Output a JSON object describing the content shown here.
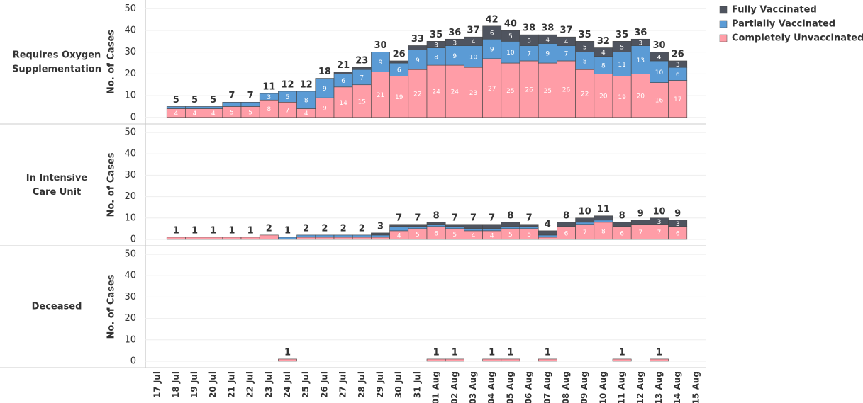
{
  "chart_data": [
    {
      "type": "bar",
      "stacked": true,
      "title": "Requires Oxygen Supplementation",
      "ylabel": "No. of Cases",
      "categories": [
        "17 Jul",
        "18 Jul",
        "19 Jul",
        "20 Jul",
        "21 Jul",
        "22 Jul",
        "23 Jul",
        "24 Jul",
        "25 Jul",
        "26 Jul",
        "27 Jul",
        "28 Jul",
        "29 Jul",
        "30 Jul",
        "31 Jul",
        "01 Aug",
        "02 Aug",
        "03 Aug",
        "04 Aug",
        "05 Aug",
        "06 Aug",
        "07 Aug",
        "08 Aug",
        "09 Aug",
        "10 Aug",
        "11 Aug",
        "12 Aug",
        "13 Aug",
        "14 Aug",
        "15 Aug"
      ],
      "series": [
        {
          "name": "Completely Unvaccinated",
          "color": "#ff9da7",
          "values": [
            null,
            4,
            4,
            4,
            5,
            5,
            8,
            7,
            4,
            9,
            14,
            15,
            21,
            19,
            22,
            24,
            24,
            23,
            27,
            25,
            26,
            25,
            26,
            22,
            20,
            19,
            20,
            16,
            17,
            null
          ]
        },
        {
          "name": "Partially Vaccinated",
          "color": "#5b9bd5",
          "values": [
            null,
            1,
            1,
            1,
            2,
            2,
            3,
            5,
            8,
            9,
            6,
            7,
            9,
            6,
            9,
            8,
            9,
            10,
            9,
            10,
            7,
            9,
            7,
            8,
            8,
            11,
            13,
            10,
            6,
            null
          ]
        },
        {
          "name": "Fully Vaccinated",
          "color": "#4f545f",
          "values": [
            null,
            0,
            0,
            0,
            0,
            0,
            0,
            0,
            0,
            0,
            1,
            1,
            0,
            1,
            2,
            3,
            3,
            4,
            6,
            5,
            5,
            4,
            4,
            5,
            4,
            5,
            3,
            4,
            3,
            null
          ]
        }
      ],
      "totals": [
        null,
        5,
        5,
        5,
        7,
        7,
        11,
        12,
        12,
        18,
        21,
        23,
        30,
        26,
        33,
        35,
        36,
        37,
        42,
        40,
        38,
        38,
        37,
        35,
        32,
        35,
        36,
        30,
        26,
        null
      ],
      "ylim": [
        -3,
        54
      ],
      "yticks": [
        0,
        10,
        20,
        30,
        40,
        50
      ],
      "grid": true
    },
    {
      "type": "bar",
      "stacked": true,
      "title": "In Intensive Care Unit",
      "ylabel": "No. of Cases",
      "categories": [
        "17 Jul",
        "18 Jul",
        "19 Jul",
        "20 Jul",
        "21 Jul",
        "22 Jul",
        "23 Jul",
        "24 Jul",
        "25 Jul",
        "26 Jul",
        "27 Jul",
        "28 Jul",
        "29 Jul",
        "30 Jul",
        "31 Jul",
        "01 Aug",
        "02 Aug",
        "03 Aug",
        "04 Aug",
        "05 Aug",
        "06 Aug",
        "07 Aug",
        "08 Aug",
        "09 Aug",
        "10 Aug",
        "11 Aug",
        "12 Aug",
        "13 Aug",
        "14 Aug",
        "15 Aug"
      ],
      "series": [
        {
          "name": "Completely Unvaccinated",
          "color": "#ff9da7",
          "values": [
            null,
            1,
            1,
            1,
            1,
            1,
            2,
            0,
            1,
            1,
            1,
            1,
            1,
            4,
            5,
            6,
            5,
            4,
            4,
            5,
            5,
            1,
            6,
            7,
            8,
            6,
            7,
            7,
            6,
            null
          ]
        },
        {
          "name": "Partially Vaccinated",
          "color": "#5b9bd5",
          "values": [
            null,
            0,
            0,
            0,
            0,
            0,
            0,
            1,
            1,
            1,
            1,
            1,
            1,
            2,
            1,
            1,
            1,
            1,
            1,
            1,
            1,
            1,
            0,
            1,
            1,
            0,
            0,
            0,
            0,
            null
          ]
        },
        {
          "name": "Fully Vaccinated",
          "color": "#4f545f",
          "values": [
            null,
            0,
            0,
            0,
            0,
            0,
            0,
            0,
            0,
            0,
            0,
            0,
            1,
            1,
            1,
            1,
            1,
            2,
            2,
            2,
            1,
            2,
            2,
            2,
            2,
            2,
            2,
            3,
            3,
            null
          ]
        }
      ],
      "totals": [
        null,
        1,
        1,
        1,
        1,
        1,
        2,
        1,
        2,
        2,
        2,
        2,
        3,
        7,
        7,
        8,
        7,
        7,
        7,
        8,
        7,
        4,
        8,
        10,
        11,
        8,
        9,
        10,
        9,
        null
      ],
      "ylim": [
        -3,
        54
      ],
      "yticks": [
        0,
        10,
        20,
        30,
        40,
        50
      ],
      "grid": true
    },
    {
      "type": "bar",
      "stacked": true,
      "title": "Deceased",
      "ylabel": "No. of Cases",
      "categories": [
        "17 Jul",
        "18 Jul",
        "19 Jul",
        "20 Jul",
        "21 Jul",
        "22 Jul",
        "23 Jul",
        "24 Jul",
        "25 Jul",
        "26 Jul",
        "27 Jul",
        "28 Jul",
        "29 Jul",
        "30 Jul",
        "31 Jul",
        "01 Aug",
        "02 Aug",
        "03 Aug",
        "04 Aug",
        "05 Aug",
        "06 Aug",
        "07 Aug",
        "08 Aug",
        "09 Aug",
        "10 Aug",
        "11 Aug",
        "12 Aug",
        "13 Aug",
        "14 Aug",
        "15 Aug"
      ],
      "series": [
        {
          "name": "Completely Unvaccinated",
          "color": "#ff9da7",
          "values": [
            null,
            null,
            null,
            null,
            null,
            null,
            null,
            1,
            null,
            null,
            null,
            null,
            null,
            null,
            null,
            1,
            1,
            null,
            1,
            1,
            null,
            1,
            null,
            null,
            null,
            1,
            null,
            1,
            null,
            null
          ]
        }
      ],
      "totals": [
        null,
        null,
        null,
        null,
        null,
        null,
        null,
        1,
        null,
        null,
        null,
        null,
        null,
        null,
        null,
        1,
        1,
        null,
        1,
        1,
        null,
        1,
        null,
        null,
        null,
        1,
        null,
        1,
        null,
        null
      ],
      "ylim": [
        -3,
        54
      ],
      "yticks": [
        0,
        10,
        20,
        30,
        40,
        50
      ],
      "grid": true
    }
  ]
}
